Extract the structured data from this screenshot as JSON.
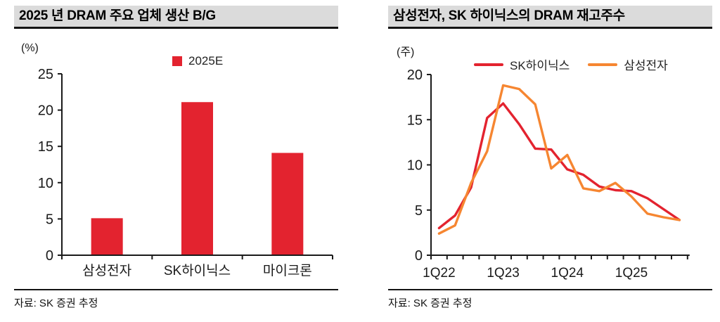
{
  "colors": {
    "red": "#e3232f",
    "orange": "#f68631",
    "axis": "#1a1a1a",
    "header_bg": "#dbdbdb",
    "divider": "#141414"
  },
  "chart_data": [
    {
      "id": "dram-production-bg-2025",
      "type": "bar",
      "title": "2025 년 DRAM 주요 업체 생산 B/G",
      "unit": "(%)",
      "categories": [
        "삼성전자",
        "SK하이닉스",
        "마이크론"
      ],
      "series": [
        {
          "name": "2025E",
          "color": "#e3232f",
          "values": [
            5.1,
            21.1,
            14.1
          ]
        }
      ],
      "ylim": [
        0,
        25
      ],
      "yticks": [
        0,
        5,
        10,
        15,
        20,
        25
      ],
      "grid": false,
      "legend_position": "top-center",
      "source": "자료: SK 증권 추정"
    },
    {
      "id": "dram-inventory-weeks",
      "type": "line",
      "title": "삼성전자, SK 하이닉스의 DRAM 재고주수",
      "unit": "(주)",
      "x": [
        "1Q22",
        "2Q22",
        "3Q22",
        "4Q22",
        "1Q23",
        "2Q23",
        "3Q23",
        "4Q23",
        "1Q24",
        "2Q24",
        "3Q24",
        "4Q24",
        "1Q25",
        "2Q25",
        "3Q25",
        "4Q25"
      ],
      "x_axis_labels": [
        "1Q22",
        "1Q23",
        "1Q24",
        "1Q25"
      ],
      "series": [
        {
          "name": "SK하이닉스",
          "color": "#e3232f",
          "values": [
            3.0,
            4.4,
            7.5,
            15.2,
            16.8,
            14.5,
            11.8,
            11.7,
            9.5,
            8.9,
            7.6,
            7.2,
            7.1,
            6.3,
            5.1,
            3.9
          ]
        },
        {
          "name": "삼성전자",
          "color": "#f68631",
          "values": [
            2.4,
            3.3,
            8.0,
            11.5,
            18.8,
            18.4,
            16.7,
            9.6,
            11.1,
            7.4,
            7.1,
            8.0,
            6.5,
            4.6,
            4.2,
            3.9
          ]
        }
      ],
      "ylim": [
        0,
        20
      ],
      "yticks": [
        0,
        5,
        10,
        15,
        20
      ],
      "grid": false,
      "legend_position": "top-center",
      "source": "자료: SK 증권 추정"
    }
  ]
}
